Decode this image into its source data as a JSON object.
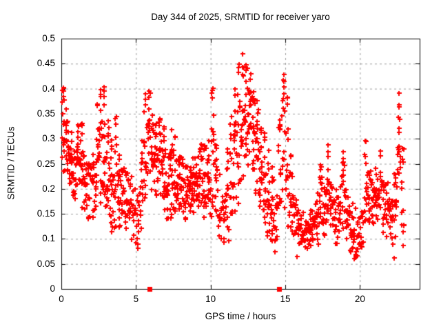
{
  "chart_data": {
    "type": "scatter",
    "title": "Day 344 of 2025, SRMTID for receiver yaro",
    "xlabel": "GPS time / hours",
    "ylabel": "SRMTID / TECUs",
    "xlim": [
      0,
      24
    ],
    "ylim": [
      0,
      0.5
    ],
    "xticks": [
      0,
      5,
      10,
      15,
      20
    ],
    "xtick_labels": [
      "0",
      "5",
      "10",
      "15",
      "20"
    ],
    "yticks": [
      0,
      0.05,
      0.1,
      0.15,
      0.2,
      0.25,
      0.3,
      0.35,
      0.4,
      0.45,
      0.5
    ],
    "ytick_labels": [
      "0",
      "0.05",
      "0.1",
      "0.15",
      "0.2",
      "0.25",
      "0.3",
      "0.35",
      "0.4",
      "0.45",
      "0.5"
    ],
    "grid": true,
    "grid_color": "#9c9c9c",
    "axis_color": "#000000",
    "legend": "none",
    "series": [
      {
        "name": "srmtid-points",
        "marker": "plus",
        "color": "#ff0000",
        "note": "dense scatter of ~1300 points; envelope bands give [ymin,ymax,count] per 0.25 h bin starting at hour 0",
        "envelope": {
          "start": 0,
          "step": 0.25,
          "bands": [
            [
              0.22,
              0.41,
              16
            ],
            [
              0.2,
              0.37,
              18
            ],
            [
              0.18,
              0.33,
              18
            ],
            [
              0.15,
              0.31,
              16
            ],
            [
              0.16,
              0.34,
              16
            ],
            [
              0.15,
              0.36,
              18
            ],
            [
              0.14,
              0.3,
              16
            ],
            [
              0.12,
              0.28,
              14
            ],
            [
              0.13,
              0.3,
              14
            ],
            [
              0.14,
              0.37,
              16
            ],
            [
              0.14,
              0.4,
              16
            ],
            [
              0.13,
              0.41,
              16
            ],
            [
              0.12,
              0.35,
              16
            ],
            [
              0.1,
              0.3,
              16
            ],
            [
              0.1,
              0.35,
              14
            ],
            [
              0.1,
              0.28,
              14
            ],
            [
              0.1,
              0.26,
              14
            ],
            [
              0.09,
              0.25,
              14
            ],
            [
              0.08,
              0.25,
              14
            ],
            [
              0.08,
              0.24,
              12
            ],
            [
              0.06,
              0.22,
              12
            ],
            [
              0.06,
              0.3,
              12
            ],
            [
              0.15,
              0.41,
              14
            ],
            [
              0.18,
              0.4,
              14
            ],
            [
              0.16,
              0.35,
              16
            ],
            [
              0.16,
              0.34,
              16
            ],
            [
              0.15,
              0.35,
              16
            ],
            [
              0.14,
              0.33,
              16
            ],
            [
              0.13,
              0.3,
              16
            ],
            [
              0.13,
              0.32,
              16
            ],
            [
              0.12,
              0.31,
              16
            ],
            [
              0.12,
              0.3,
              16
            ],
            [
              0.13,
              0.28,
              16
            ],
            [
              0.13,
              0.27,
              16
            ],
            [
              0.13,
              0.26,
              18
            ],
            [
              0.14,
              0.28,
              18
            ],
            [
              0.14,
              0.3,
              16
            ],
            [
              0.14,
              0.31,
              16
            ],
            [
              0.12,
              0.33,
              14
            ],
            [
              0.1,
              0.3,
              14
            ],
            [
              0.1,
              0.42,
              14
            ],
            [
              0.08,
              0.3,
              14
            ],
            [
              0.07,
              0.25,
              12
            ],
            [
              0.06,
              0.22,
              12
            ],
            [
              0.08,
              0.28,
              12
            ],
            [
              0.1,
              0.35,
              12
            ],
            [
              0.12,
              0.4,
              14
            ],
            [
              0.15,
              0.46,
              14
            ],
            [
              0.18,
              0.475,
              16
            ],
            [
              0.2,
              0.46,
              16
            ],
            [
              0.22,
              0.44,
              16
            ],
            [
              0.2,
              0.42,
              16
            ],
            [
              0.16,
              0.38,
              16
            ],
            [
              0.12,
              0.35,
              16
            ],
            [
              0.08,
              0.32,
              14
            ],
            [
              0.06,
              0.28,
              14
            ],
            [
              0.05,
              0.25,
              14
            ],
            [
              0.05,
              0.22,
              12
            ],
            [
              0.1,
              0.35,
              12
            ],
            [
              0.12,
              0.45,
              14
            ],
            [
              0.1,
              0.4,
              12
            ],
            [
              0.08,
              0.28,
              12
            ],
            [
              0.07,
              0.22,
              14
            ],
            [
              0.06,
              0.18,
              14
            ],
            [
              0.06,
              0.16,
              16
            ],
            [
              0.07,
              0.16,
              16
            ],
            [
              0.07,
              0.17,
              16
            ],
            [
              0.08,
              0.18,
              16
            ],
            [
              0.08,
              0.2,
              16
            ],
            [
              0.08,
              0.28,
              14
            ],
            [
              0.09,
              0.22,
              14
            ],
            [
              0.09,
              0.3,
              14
            ],
            [
              0.09,
              0.25,
              14
            ],
            [
              0.08,
              0.22,
              14
            ],
            [
              0.08,
              0.26,
              14
            ],
            [
              0.08,
              0.28,
              14
            ],
            [
              0.07,
              0.22,
              14
            ],
            [
              0.06,
              0.2,
              14
            ],
            [
              0.05,
              0.18,
              14
            ],
            [
              0.05,
              0.16,
              12
            ],
            [
              0.06,
              0.2,
              12
            ],
            [
              0.08,
              0.3,
              12
            ],
            [
              0.1,
              0.26,
              14
            ],
            [
              0.1,
              0.24,
              14
            ],
            [
              0.12,
              0.25,
              14
            ],
            [
              0.12,
              0.28,
              14
            ],
            [
              0.1,
              0.26,
              14
            ],
            [
              0.1,
              0.22,
              14
            ],
            [
              0.08,
              0.2,
              14
            ],
            [
              0.05,
              0.26,
              12
            ],
            [
              0.1,
              0.41,
              14
            ],
            [
              0.07,
              0.3,
              10
            ]
          ]
        }
      },
      {
        "name": "baseline-flag-squares",
        "marker": "filled-square",
        "color": "#ff0000",
        "points": [
          [
            5.9,
            0
          ],
          [
            14.6,
            0
          ]
        ]
      }
    ]
  }
}
